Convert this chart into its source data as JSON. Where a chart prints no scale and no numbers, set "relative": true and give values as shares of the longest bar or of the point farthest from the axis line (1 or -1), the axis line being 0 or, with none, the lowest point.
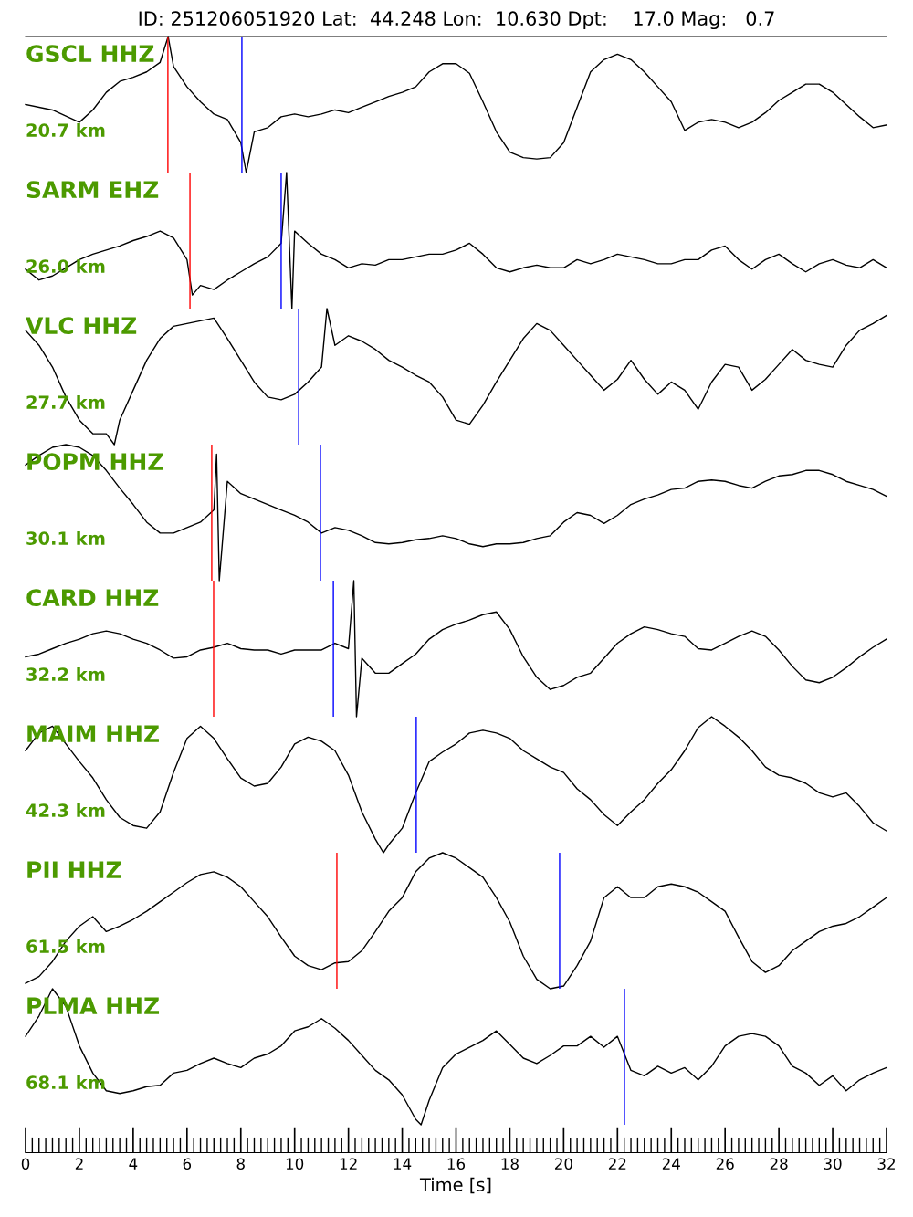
{
  "chart_data": [
    {
      "type": "line",
      "relative": true,
      "title": "GSCL HHZ",
      "subtitle": "20.7 km",
      "annotations": [
        "ID: 251206051920 Lat:  44.248 Lon:  10.630 Dpt:    17.0 Mag:   0.7"
      ],
      "xlim": [
        0,
        32
      ],
      "tick_labels": false,
      "color": "#000000",
      "x": [
        0,
        1,
        2,
        2.5,
        3,
        3.5,
        4,
        4.5,
        5,
        5.3,
        5.5,
        6,
        6.5,
        7,
        7.5,
        8,
        8.2,
        8.5,
        9,
        9.5,
        10,
        10.5,
        11,
        11.5,
        12,
        12.5,
        13,
        13.5,
        14,
        14.5,
        15,
        15.5,
        16,
        16.5,
        17,
        17.5,
        18,
        18.5,
        19,
        19.5,
        20,
        20.5,
        21,
        21.5,
        22,
        22.5,
        23,
        23.5,
        24,
        24.5,
        25,
        25.5,
        26,
        26.5,
        27,
        27.5,
        28,
        28.5,
        29,
        29.5,
        30,
        30.5,
        31,
        31.5,
        32
      ],
      "values": [
        0.5,
        0.46,
        0.37,
        0.46,
        0.59,
        0.67,
        0.7,
        0.74,
        0.81,
        1.0,
        0.78,
        0.63,
        0.52,
        0.43,
        0.39,
        0.22,
        0,
        0.3,
        0.33,
        0.41,
        0.43,
        0.41,
        0.43,
        0.46,
        0.44,
        0.48,
        0.52,
        0.56,
        0.59,
        0.63,
        0.74,
        0.8,
        0.8,
        0.73,
        0.52,
        0.3,
        0.15,
        0.11,
        0.1,
        0.11,
        0.22,
        0.48,
        0.74,
        0.83,
        0.87,
        0.83,
        0.74,
        0.63,
        0.52,
        0.31,
        0.37,
        0.39,
        0.37,
        0.33,
        0.37,
        0.44,
        0.53,
        0.59,
        0.65,
        0.65,
        0.59,
        0.5,
        0.41,
        0.33,
        0.35
      ],
      "ref_lines": [
        {
          "axis": "x",
          "value": 5.29,
          "color": "#ff0000"
        },
        {
          "axis": "x",
          "value": 8.04,
          "color": "#0000ff"
        }
      ]
    },
    {
      "type": "line",
      "relative": true,
      "title": "SARM EHZ",
      "subtitle": "26.0 km",
      "xlim": [
        0,
        32
      ],
      "tick_labels": false,
      "color": "#000000",
      "x": [
        0,
        0.5,
        1,
        1.5,
        2,
        2.5,
        3,
        3.5,
        4,
        4.5,
        5,
        5.5,
        6,
        6.2,
        6.5,
        7,
        7.5,
        8,
        8.5,
        9,
        9.5,
        9.7,
        9.9,
        10,
        10.5,
        11,
        11.5,
        12,
        12.5,
        13,
        13.5,
        14,
        14.5,
        15,
        15.5,
        16,
        16.5,
        17,
        17.5,
        18,
        18.5,
        19,
        19.5,
        20,
        20.5,
        21,
        21.5,
        22,
        22.5,
        23,
        23.5,
        24,
        24.5,
        25,
        25.5,
        26,
        26.5,
        27,
        27.5,
        28,
        28.5,
        29,
        29.5,
        30,
        30.5,
        31,
        31.5,
        32
      ],
      "values": [
        0.29,
        0.21,
        0.24,
        0.3,
        0.36,
        0.4,
        0.43,
        0.46,
        0.5,
        0.53,
        0.57,
        0.52,
        0.36,
        0.1,
        0.17,
        0.14,
        0.21,
        0.27,
        0.33,
        0.38,
        0.48,
        1.0,
        0,
        0.57,
        0.48,
        0.4,
        0.36,
        0.3,
        0.33,
        0.32,
        0.36,
        0.36,
        0.38,
        0.4,
        0.4,
        0.43,
        0.48,
        0.4,
        0.3,
        0.27,
        0.3,
        0.32,
        0.3,
        0.3,
        0.36,
        0.33,
        0.36,
        0.4,
        0.38,
        0.36,
        0.33,
        0.33,
        0.36,
        0.36,
        0.43,
        0.46,
        0.36,
        0.29,
        0.36,
        0.4,
        0.33,
        0.27,
        0.33,
        0.36,
        0.32,
        0.3,
        0.36,
        0.3
      ],
      "ref_lines": [
        {
          "axis": "x",
          "value": 6.11,
          "color": "#ff0000"
        },
        {
          "axis": "x",
          "value": 9.5,
          "color": "#0000ff"
        }
      ]
    },
    {
      "type": "line",
      "relative": true,
      "title": "VLC HHZ",
      "subtitle": "27.7 km",
      "xlim": [
        0,
        32
      ],
      "tick_labels": false,
      "color": "#000000",
      "x": [
        0,
        0.5,
        1,
        1.5,
        2,
        2.5,
        3,
        3.3,
        3.5,
        4,
        4.5,
        5,
        5.5,
        6,
        6.5,
        7,
        7.5,
        8,
        8.5,
        9,
        9.5,
        10,
        10.5,
        11,
        11.2,
        11.5,
        12,
        12.5,
        13,
        13.5,
        14,
        14.5,
        15,
        15.5,
        16,
        16.5,
        17,
        17.5,
        18,
        18.5,
        19,
        19.5,
        20,
        20.5,
        21,
        21.5,
        22,
        22.5,
        23,
        23.5,
        24,
        24.5,
        25,
        25.5,
        26,
        26.5,
        27,
        27.5,
        28,
        28.5,
        29,
        29.5,
        30,
        30.5,
        31,
        31.5,
        32
      ],
      "values": [
        0.84,
        0.73,
        0.57,
        0.35,
        0.18,
        0.08,
        0.08,
        0,
        0.18,
        0.4,
        0.62,
        0.78,
        0.87,
        0.89,
        0.91,
        0.93,
        0.78,
        0.62,
        0.46,
        0.35,
        0.33,
        0.37,
        0.46,
        0.57,
        1.0,
        0.73,
        0.8,
        0.76,
        0.7,
        0.62,
        0.57,
        0.51,
        0.46,
        0.35,
        0.18,
        0.15,
        0.29,
        0.46,
        0.62,
        0.78,
        0.89,
        0.84,
        0.73,
        0.62,
        0.51,
        0.4,
        0.48,
        0.62,
        0.48,
        0.37,
        0.46,
        0.4,
        0.26,
        0.46,
        0.59,
        0.57,
        0.4,
        0.48,
        0.59,
        0.7,
        0.62,
        0.59,
        0.57,
        0.73,
        0.84,
        0.89,
        0.95
      ],
      "ref_lines": [
        {
          "axis": "x",
          "value": 10.15,
          "color": "#0000ff"
        }
      ]
    },
    {
      "type": "line",
      "relative": true,
      "title": "POPM HHZ",
      "subtitle": "30.1 km",
      "xlim": [
        0,
        32
      ],
      "tick_labels": false,
      "color": "#000000",
      "x": [
        0,
        0.5,
        1,
        1.5,
        2,
        2.5,
        3,
        3.5,
        4,
        4.5,
        5,
        5.5,
        6,
        6.5,
        7,
        7.1,
        7.2,
        7.5,
        8,
        8.5,
        9,
        9.5,
        10,
        10.5,
        11,
        11.5,
        12,
        12.5,
        13,
        13.5,
        14,
        14.5,
        15,
        15.5,
        16,
        16.5,
        17,
        17.5,
        18,
        18.5,
        19,
        19.5,
        20,
        20.5,
        21,
        21.5,
        22,
        22.5,
        23,
        23.5,
        24,
        24.5,
        25,
        25.5,
        26,
        26.5,
        27,
        27.5,
        28,
        28.5,
        29,
        29.5,
        30,
        30.5,
        31,
        31.5,
        32
      ],
      "values": [
        0.85,
        0.92,
        0.98,
        1.0,
        0.98,
        0.92,
        0.81,
        0.68,
        0.56,
        0.43,
        0.35,
        0.35,
        0.39,
        0.43,
        0.52,
        0.93,
        0,
        0.73,
        0.64,
        0.6,
        0.56,
        0.52,
        0.48,
        0.43,
        0.35,
        0.39,
        0.37,
        0.33,
        0.28,
        0.27,
        0.28,
        0.3,
        0.31,
        0.33,
        0.31,
        0.27,
        0.25,
        0.27,
        0.27,
        0.28,
        0.31,
        0.33,
        0.43,
        0.5,
        0.48,
        0.42,
        0.48,
        0.56,
        0.6,
        0.63,
        0.67,
        0.68,
        0.73,
        0.74,
        0.73,
        0.7,
        0.68,
        0.73,
        0.77,
        0.78,
        0.81,
        0.81,
        0.78,
        0.73,
        0.7,
        0.67,
        0.62
      ],
      "ref_lines": [
        {
          "axis": "x",
          "value": 6.92,
          "color": "#ff0000"
        },
        {
          "axis": "x",
          "value": 10.96,
          "color": "#0000ff"
        }
      ]
    },
    {
      "type": "line",
      "relative": true,
      "title": "CARD HHZ",
      "subtitle": "32.2 km",
      "xlim": [
        0,
        32
      ],
      "tick_labels": false,
      "color": "#000000",
      "x": [
        0,
        0.5,
        1,
        1.5,
        2,
        2.5,
        3,
        3.5,
        4,
        4.5,
        5,
        5.5,
        6,
        6.5,
        7,
        7.5,
        8,
        8.5,
        9,
        9.5,
        10,
        10.5,
        11,
        11.5,
        12,
        12.2,
        12.3,
        12.5,
        13,
        13.5,
        14,
        14.5,
        15,
        15.5,
        16,
        16.5,
        17,
        17.5,
        18,
        18.5,
        19,
        19.5,
        20,
        20.5,
        21,
        21.5,
        22,
        22.5,
        23,
        23.5,
        24,
        24.5,
        25,
        25.5,
        26,
        26.5,
        27,
        27.5,
        28,
        28.5,
        29,
        29.5,
        30,
        30.5,
        31,
        31.5,
        32
      ],
      "values": [
        0.44,
        0.46,
        0.5,
        0.54,
        0.57,
        0.61,
        0.63,
        0.61,
        0.57,
        0.54,
        0.49,
        0.43,
        0.44,
        0.49,
        0.51,
        0.54,
        0.5,
        0.49,
        0.49,
        0.46,
        0.49,
        0.49,
        0.49,
        0.54,
        0.5,
        1.0,
        0,
        0.43,
        0.32,
        0.32,
        0.39,
        0.46,
        0.57,
        0.64,
        0.68,
        0.71,
        0.75,
        0.77,
        0.64,
        0.44,
        0.29,
        0.2,
        0.23,
        0.29,
        0.32,
        0.43,
        0.54,
        0.61,
        0.66,
        0.64,
        0.61,
        0.59,
        0.5,
        0.49,
        0.54,
        0.59,
        0.63,
        0.59,
        0.49,
        0.37,
        0.27,
        0.25,
        0.29,
        0.36,
        0.44,
        0.51,
        0.57
      ],
      "ref_lines": [
        {
          "axis": "x",
          "value": 6.99,
          "color": "#ff0000"
        },
        {
          "axis": "x",
          "value": 11.44,
          "color": "#0000ff"
        }
      ]
    },
    {
      "type": "line",
      "relative": true,
      "title": "MAIM HHZ",
      "subtitle": "42.3 km",
      "xlim": [
        0,
        32
      ],
      "tick_labels": false,
      "color": "#000000",
      "x": [
        0,
        0.5,
        1,
        1.5,
        2,
        2.5,
        3,
        3.5,
        4,
        4.5,
        5,
        5.5,
        6,
        6.5,
        7,
        7.5,
        8,
        8.5,
        9,
        9.5,
        10,
        10.5,
        11,
        11.5,
        12,
        12.5,
        13,
        13.3,
        13.5,
        14,
        14.5,
        15,
        15.5,
        16,
        16.5,
        17,
        17.5,
        18,
        18.5,
        19,
        19.5,
        20,
        20.5,
        21,
        21.5,
        22,
        22.5,
        23,
        23.5,
        24,
        24.5,
        25,
        25.5,
        26,
        26.5,
        27,
        27.5,
        28,
        28.5,
        29,
        29.5,
        30,
        30.5,
        31,
        31.5,
        32
      ],
      "values": [
        0.75,
        0.88,
        0.93,
        0.8,
        0.67,
        0.55,
        0.39,
        0.26,
        0.2,
        0.18,
        0.3,
        0.59,
        0.84,
        0.93,
        0.84,
        0.69,
        0.55,
        0.49,
        0.51,
        0.63,
        0.8,
        0.85,
        0.82,
        0.75,
        0.57,
        0.3,
        0.1,
        0,
        0.06,
        0.18,
        0.44,
        0.67,
        0.74,
        0.8,
        0.88,
        0.9,
        0.88,
        0.84,
        0.75,
        0.69,
        0.63,
        0.59,
        0.47,
        0.39,
        0.28,
        0.2,
        0.3,
        0.39,
        0.51,
        0.61,
        0.75,
        0.92,
        1.0,
        0.93,
        0.85,
        0.75,
        0.63,
        0.57,
        0.55,
        0.51,
        0.44,
        0.41,
        0.44,
        0.34,
        0.22,
        0.16
      ],
      "ref_lines": [
        {
          "axis": "x",
          "value": 14.52,
          "color": "#0000ff"
        }
      ]
    },
    {
      "type": "line",
      "relative": true,
      "title": "PII HHZ",
      "subtitle": "61.5 km",
      "xlim": [
        0,
        32
      ],
      "tick_labels": false,
      "color": "#000000",
      "x": [
        0,
        0.5,
        1,
        1.5,
        2,
        2.5,
        3,
        3.5,
        4,
        4.5,
        5,
        5.5,
        6,
        6.5,
        7,
        7.5,
        8,
        8.5,
        9,
        9.5,
        10,
        10.5,
        11,
        11.5,
        12,
        12.5,
        13,
        13.5,
        14,
        14.5,
        15,
        15.5,
        16,
        16.5,
        17,
        17.5,
        18,
        18.5,
        19,
        19.5,
        20,
        20.5,
        21,
        21.5,
        22,
        22.5,
        23,
        23.5,
        24,
        24.5,
        25,
        25.5,
        26,
        26.5,
        27,
        27.5,
        28,
        28.5,
        29,
        29.5,
        30,
        30.5,
        31,
        31.5,
        32
      ],
      "values": [
        0.04,
        0.09,
        0.2,
        0.35,
        0.46,
        0.53,
        0.42,
        0.46,
        0.51,
        0.57,
        0.64,
        0.71,
        0.78,
        0.84,
        0.86,
        0.82,
        0.75,
        0.64,
        0.53,
        0.38,
        0.24,
        0.17,
        0.14,
        0.19,
        0.2,
        0.28,
        0.42,
        0.57,
        0.67,
        0.86,
        0.96,
        1.0,
        0.96,
        0.89,
        0.82,
        0.67,
        0.49,
        0.24,
        0.07,
        0,
        0.02,
        0.17,
        0.35,
        0.67,
        0.75,
        0.67,
        0.67,
        0.75,
        0.77,
        0.75,
        0.71,
        0.64,
        0.57,
        0.38,
        0.2,
        0.12,
        0.17,
        0.28,
        0.35,
        0.42,
        0.46,
        0.48,
        0.53,
        0.6,
        0.67
      ],
      "ref_lines": [
        {
          "axis": "x",
          "value": 11.57,
          "color": "#ff0000"
        },
        {
          "axis": "x",
          "value": 19.85,
          "color": "#0000ff"
        }
      ]
    },
    {
      "type": "line",
      "relative": true,
      "title": "PLMA HHZ",
      "subtitle": "68.1 km",
      "xlabel": "Time [s]",
      "xlim": [
        0,
        32
      ],
      "xticks": [
        0,
        2,
        4,
        6,
        8,
        10,
        12,
        14,
        16,
        18,
        20,
        22,
        24,
        26,
        28,
        30,
        32
      ],
      "tick_labels": "x",
      "color": "#000000",
      "x": [
        0,
        0.5,
        1,
        1.5,
        2,
        2.5,
        3,
        3.5,
        4,
        4.5,
        5,
        5.5,
        6,
        6.5,
        7,
        7.5,
        8,
        8.5,
        9,
        9.5,
        10,
        10.5,
        11,
        11.5,
        12,
        12.5,
        13,
        13.5,
        14,
        14.5,
        14.7,
        15,
        15.5,
        16,
        16.5,
        17,
        17.5,
        18,
        18.5,
        19,
        19.5,
        20,
        20.5,
        21,
        21.5,
        22,
        22.5,
        23,
        23.5,
        24,
        24.5,
        25,
        25.5,
        26,
        26.5,
        27,
        27.5,
        28,
        28.5,
        29,
        29.5,
        30,
        30.5,
        31,
        31.5,
        32
      ],
      "values": [
        0.65,
        0.8,
        1.0,
        0.87,
        0.58,
        0.38,
        0.25,
        0.23,
        0.25,
        0.28,
        0.29,
        0.38,
        0.4,
        0.45,
        0.49,
        0.45,
        0.42,
        0.49,
        0.52,
        0.58,
        0.69,
        0.72,
        0.78,
        0.71,
        0.62,
        0.51,
        0.4,
        0.33,
        0.22,
        0.04,
        0,
        0.18,
        0.42,
        0.52,
        0.57,
        0.62,
        0.69,
        0.59,
        0.49,
        0.45,
        0.51,
        0.58,
        0.58,
        0.65,
        0.57,
        0.65,
        0.4,
        0.36,
        0.43,
        0.38,
        0.42,
        0.33,
        0.43,
        0.58,
        0.65,
        0.67,
        0.65,
        0.58,
        0.43,
        0.38,
        0.29,
        0.36,
        0.25,
        0.33,
        0.38,
        0.42
      ],
      "ref_lines": [
        {
          "axis": "x",
          "value": 22.26,
          "color": "#0000ff"
        }
      ]
    }
  ]
}
